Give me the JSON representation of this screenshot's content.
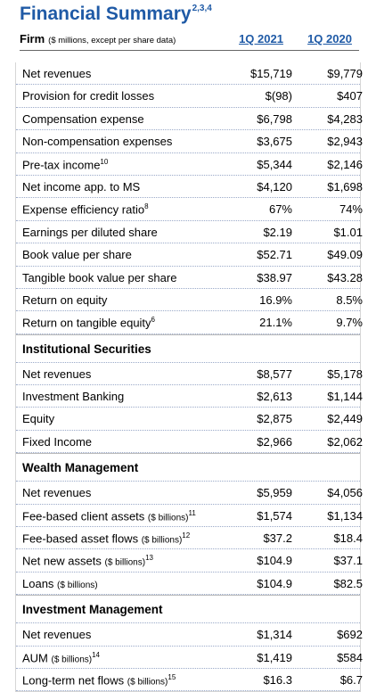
{
  "header": {
    "title": "Financial Summary",
    "title_note": "2,3,4",
    "firm": "Firm",
    "firm_unit": "($ millions, except per share data)",
    "columns": [
      "1Q 2021",
      "1Q 2020"
    ]
  },
  "firm_rows": [
    {
      "label": "Net revenues",
      "values": [
        "$15,719",
        "$9,779"
      ]
    },
    {
      "label": "Provision for credit losses",
      "values": [
        "$(98)",
        "$407"
      ]
    },
    {
      "label": "Compensation expense",
      "values": [
        "$6,798",
        "$4,283"
      ]
    },
    {
      "label": "Non-compensation expenses",
      "values": [
        "$3,675",
        "$2,943"
      ]
    },
    {
      "label": "Pre-tax income",
      "note": "10",
      "values": [
        "$5,344",
        "$2,146"
      ]
    },
    {
      "label": "Net income app. to MS",
      "values": [
        "$4,120",
        "$1,698"
      ]
    },
    {
      "label": "Expense efficiency ratio",
      "note": "8",
      "values": [
        "67%",
        "74%"
      ]
    },
    {
      "label": "Earnings per diluted share",
      "values": [
        "$2.19",
        "$1.01"
      ]
    },
    {
      "label": "Book value per share",
      "values": [
        "$52.71",
        "$49.09"
      ]
    },
    {
      "label": "Tangible book value per share",
      "values": [
        "$38.97",
        "$43.28"
      ]
    },
    {
      "label": "Return on equity",
      "values": [
        "16.9%",
        "8.5%"
      ]
    },
    {
      "label": "Return on tangible equity",
      "note": "6",
      "values": [
        "21.1%",
        "9.7%"
      ]
    }
  ],
  "sections": [
    {
      "title": "Institutional Securities",
      "rows": [
        {
          "label": "Net revenues",
          "values": [
            "$8,577",
            "$5,178"
          ]
        },
        {
          "label": "Investment Banking",
          "values": [
            "$2,613",
            "$1,144"
          ]
        },
        {
          "label": "Equity",
          "values": [
            "$2,875",
            "$2,449"
          ]
        },
        {
          "label": "Fixed Income",
          "values": [
            "$2,966",
            "$2,062"
          ]
        }
      ]
    },
    {
      "title": "Wealth Management",
      "rows": [
        {
          "label": "Net revenues",
          "values": [
            "$5,959",
            "$4,056"
          ]
        },
        {
          "label": "Fee-based client assets",
          "unit": "($ billions)",
          "note": "11",
          "values": [
            "$1,574",
            "$1,134"
          ]
        },
        {
          "label": "Fee-based asset flows",
          "unit": "($ billions)",
          "note": "12",
          "values": [
            "$37.2",
            "$18.4"
          ]
        },
        {
          "label": "Net new assets",
          "unit": "($ billions)",
          "note": "13",
          "values": [
            "$104.9",
            "$37.1"
          ]
        },
        {
          "label": "Loans",
          "unit": "($ billions)",
          "values": [
            "$104.9",
            "$82.5"
          ]
        }
      ]
    },
    {
      "title": "Investment Management",
      "rows": [
        {
          "label": "Net revenues",
          "values": [
            "$1,314",
            "$692"
          ]
        },
        {
          "label": "AUM",
          "unit": "($ billions)",
          "note": "14",
          "values": [
            "$1,419",
            "$584"
          ]
        },
        {
          "label": "Long-term net flows",
          "unit": "($ billions)",
          "note": "15",
          "values": [
            "$16.3",
            "$6.7"
          ]
        }
      ]
    }
  ]
}
